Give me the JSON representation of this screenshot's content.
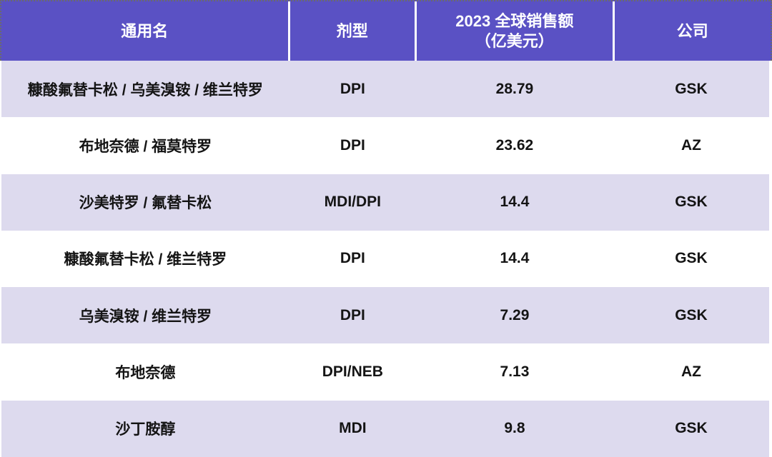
{
  "colors": {
    "header_bg": "#5A51C4",
    "header_text": "#FFFFFF",
    "row_alt_bg": "#DDDAEE",
    "row_bg": "#FFFFFF",
    "body_text": "#141414",
    "selection_border": "#6B6B6B"
  },
  "header": {
    "col1": "通用名",
    "col2": "剂型",
    "col3": "2023 全球销售额\n（亿美元）",
    "col4": "公司"
  },
  "chart_data": {
    "type": "table",
    "title": "",
    "columns": [
      "通用名",
      "剂型",
      "2023 全球销售额（亿美元）",
      "公司"
    ],
    "rows": [
      [
        "糠酸氟替卡松 / 乌美溴铵 / 维兰特罗",
        "DPI",
        "28.79",
        "GSK"
      ],
      [
        "布地奈德 / 福莫特罗",
        "DPI",
        "23.62",
        "AZ"
      ],
      [
        "沙美特罗 / 氟替卡松",
        "MDI/DPI",
        "14.4",
        "GSK"
      ],
      [
        "糠酸氟替卡松 / 维兰特罗",
        "DPI",
        "14.4",
        "GSK"
      ],
      [
        "乌美溴铵 / 维兰特罗",
        "DPI",
        "7.29",
        "GSK"
      ],
      [
        "布地奈德",
        "DPI/NEB",
        "7.13",
        "AZ"
      ],
      [
        "沙丁胺醇",
        "MDI",
        "9.8",
        "GSK"
      ]
    ]
  }
}
